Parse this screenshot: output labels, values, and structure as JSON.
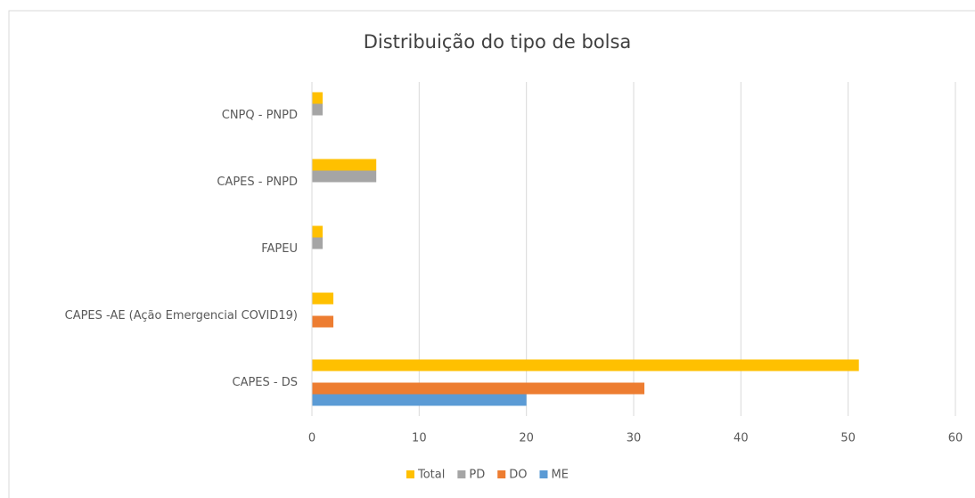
{
  "chart_data": {
    "type": "hbar",
    "title": "Distribuição do tipo de bolsa",
    "categories": [
      "CAPES - DS",
      "CAPES -AE (Ação Emergencial COVID19)",
      "FAPEU",
      "CAPES - PNPD",
      "CNPQ - PNPD"
    ],
    "series": [
      {
        "name": "Total",
        "color": "#ffc000",
        "values": [
          51,
          2,
          1,
          6,
          1
        ]
      },
      {
        "name": "PD",
        "color": "#a5a5a5",
        "values": [
          null,
          null,
          1,
          6,
          1
        ]
      },
      {
        "name": "DO",
        "color": "#ed7d31",
        "values": [
          31,
          2,
          null,
          null,
          null
        ]
      },
      {
        "name": "ME",
        "color": "#5b9bd5",
        "values": [
          20,
          null,
          null,
          null,
          null
        ]
      }
    ],
    "xlim": [
      0,
      60
    ],
    "xticks": [
      0,
      10,
      20,
      30,
      40,
      50,
      60
    ],
    "grid": true,
    "legend": "bottom"
  }
}
